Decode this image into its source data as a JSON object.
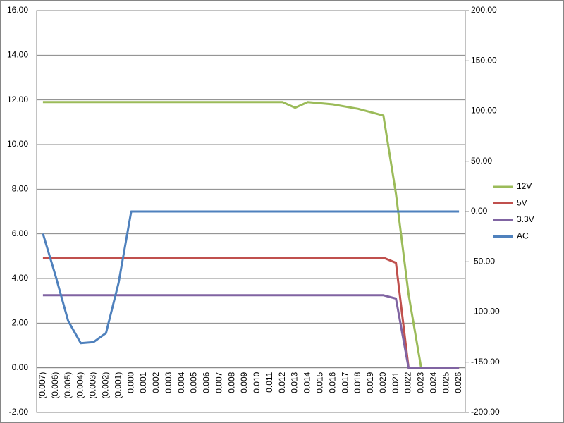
{
  "chart_data": {
    "type": "line",
    "categories": [
      "(0.007)",
      "(0.006)",
      "(0.005)",
      "(0.004)",
      "(0.003)",
      "(0.002)",
      "(0.001)",
      "0.000",
      "0.001",
      "0.002",
      "0.003",
      "0.004",
      "0.005",
      "0.006",
      "0.007",
      "0.008",
      "0.009",
      "0.010",
      "0.011",
      "0.012",
      "0.013",
      "0.014",
      "0.015",
      "0.016",
      "0.017",
      "0.018",
      "0.019",
      "0.020",
      "0.021",
      "0.022",
      "0.023",
      "0.024",
      "0.025",
      "0.026"
    ],
    "series": [
      {
        "name": "12V",
        "color": "#9bbb59",
        "values": [
          11.9,
          11.9,
          11.9,
          11.9,
          11.9,
          11.9,
          11.9,
          11.9,
          11.9,
          11.9,
          11.9,
          11.9,
          11.9,
          11.9,
          11.9,
          11.9,
          11.9,
          11.9,
          11.9,
          11.9,
          11.65,
          11.9,
          11.85,
          11.8,
          11.7,
          11.6,
          11.45,
          11.3,
          7.8,
          3.3,
          0,
          0,
          0,
          0
        ]
      },
      {
        "name": "5V",
        "color": "#c0504d",
        "values": [
          4.93,
          4.93,
          4.93,
          4.93,
          4.93,
          4.93,
          4.93,
          4.93,
          4.93,
          4.93,
          4.93,
          4.93,
          4.93,
          4.93,
          4.93,
          4.93,
          4.93,
          4.93,
          4.93,
          4.93,
          4.93,
          4.93,
          4.93,
          4.93,
          4.93,
          4.93,
          4.93,
          4.93,
          4.7,
          0,
          0,
          0,
          0,
          0
        ]
      },
      {
        "name": "3.3V",
        "color": "#8064a2",
        "values": [
          3.25,
          3.25,
          3.25,
          3.25,
          3.25,
          3.25,
          3.25,
          3.25,
          3.25,
          3.25,
          3.25,
          3.25,
          3.25,
          3.25,
          3.25,
          3.25,
          3.25,
          3.25,
          3.25,
          3.25,
          3.25,
          3.25,
          3.25,
          3.25,
          3.25,
          3.25,
          3.25,
          3.25,
          3.1,
          0,
          0,
          0,
          0,
          0
        ]
      },
      {
        "name": "AC",
        "color": "#4f81bd",
        "axis": "y2",
        "values": [
          -22,
          -64,
          -109,
          -131,
          -130,
          -121,
          -71,
          0,
          0,
          0,
          0,
          0,
          0,
          0,
          0,
          0,
          0,
          0,
          0,
          0,
          0,
          0,
          0,
          0,
          0,
          0,
          0,
          0,
          0,
          0,
          0,
          0,
          0,
          0
        ]
      }
    ],
    "ylim": [
      -2,
      16
    ],
    "yticks": [
      {
        "value": -2,
        "label": "-2.00"
      },
      {
        "value": 0,
        "label": "0.00"
      },
      {
        "value": 2,
        "label": "2.00"
      },
      {
        "value": 4,
        "label": "4.00"
      },
      {
        "value": 6,
        "label": "6.00"
      },
      {
        "value": 8,
        "label": "8.00"
      },
      {
        "value": 10,
        "label": "10.00"
      },
      {
        "value": 12,
        "label": "12.00"
      },
      {
        "value": 14,
        "label": "14.00"
      },
      {
        "value": 16,
        "label": "16.00"
      }
    ],
    "y2lim": [
      -200,
      200
    ],
    "y2ticks": [
      {
        "value": -200,
        "label": "-200.00"
      },
      {
        "value": -150,
        "label": "-150.00"
      },
      {
        "value": -100,
        "label": "-100.00"
      },
      {
        "value": -50,
        "label": "-50.00"
      },
      {
        "value": 0,
        "label": "0.00"
      },
      {
        "value": 50,
        "label": "50.00"
      },
      {
        "value": 100,
        "label": "100.00"
      },
      {
        "value": 150,
        "label": "150.00"
      },
      {
        "value": 200,
        "label": "200.00"
      }
    ],
    "grid": true,
    "legend": "right"
  }
}
